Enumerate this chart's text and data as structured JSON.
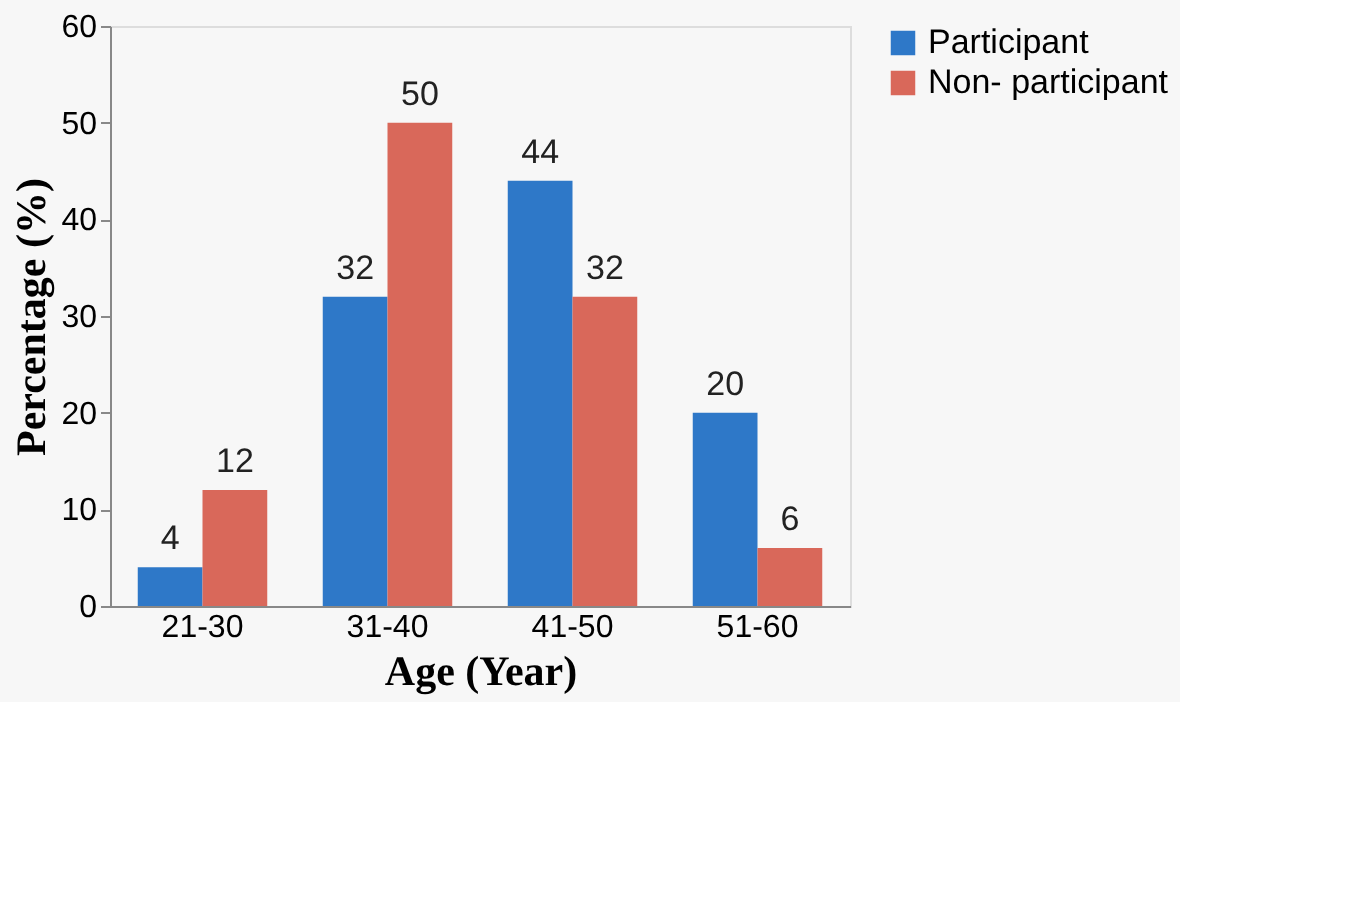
{
  "chart_data": {
    "type": "bar",
    "xlabel": "Age (Year)",
    "ylabel": "Percentage (%)",
    "categories": [
      "21-30",
      "31-40",
      "41-50",
      "51-60"
    ],
    "series": [
      {
        "name": "Participant",
        "color": "#2e78c8",
        "values": [
          4,
          32,
          44,
          20
        ]
      },
      {
        "name": "Non- participant",
        "color": "#d9685a",
        "values": [
          12,
          50,
          32,
          6
        ]
      }
    ],
    "ylim": [
      0,
      60
    ],
    "yticks": [
      0,
      10,
      20,
      30,
      40,
      50,
      60
    ],
    "grid": false,
    "legend": "right",
    "data_labels": true
  }
}
